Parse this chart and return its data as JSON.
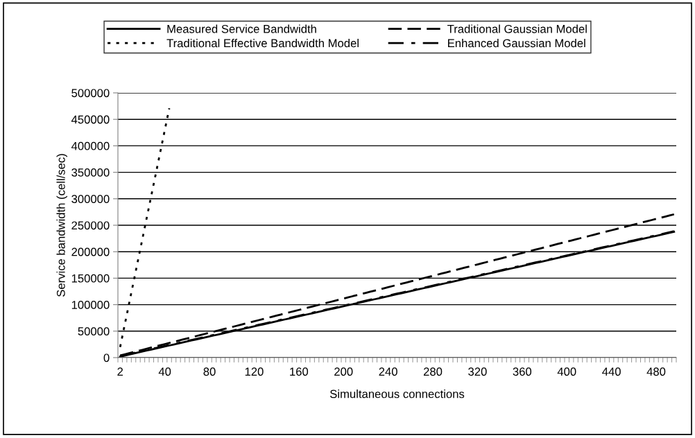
{
  "chart_data": {
    "type": "line",
    "xlabel": "Simultaneous connections",
    "ylabel": "Service bandwidth (cell/sec)",
    "categories": [
      "2",
      null,
      null,
      null,
      null,
      null,
      null,
      null,
      null,
      null,
      "40",
      null,
      null,
      null,
      null,
      null,
      null,
      null,
      null,
      null,
      "80",
      null,
      null,
      null,
      null,
      null,
      null,
      null,
      null,
      null,
      "120",
      null,
      null,
      null,
      null,
      null,
      null,
      null,
      null,
      null,
      "160",
      null,
      null,
      null,
      null,
      null,
      null,
      null,
      null,
      null,
      "200",
      null,
      null,
      null,
      null,
      null,
      null,
      null,
      null,
      null,
      "240",
      null,
      null,
      null,
      null,
      null,
      null,
      null,
      null,
      null,
      "280",
      null,
      null,
      null,
      null,
      null,
      null,
      null,
      null,
      null,
      "320",
      null,
      null,
      null,
      null,
      null,
      null,
      null,
      null,
      null,
      "360",
      null,
      null,
      null,
      null,
      null,
      null,
      null,
      null,
      null,
      "400",
      null,
      null,
      null,
      null,
      null,
      null,
      null,
      null,
      null,
      "440",
      null,
      null,
      null,
      null,
      null,
      null,
      null,
      null,
      null,
      "480",
      null,
      null,
      null,
      null
    ],
    "ylim": [
      0,
      500000
    ],
    "yticks": [
      0,
      50000,
      100000,
      150000,
      200000,
      250000,
      300000,
      350000,
      400000,
      450000,
      500000
    ],
    "grid": "y",
    "legend": "top",
    "marker": "none",
    "series": [
      {
        "name": "Measured Service Bandwidth",
        "color": "#000000",
        "line_style": "solid",
        "values": [
          2000,
          3900,
          5800,
          7700,
          9600,
          11500,
          13400,
          15300,
          17200,
          19100,
          21000,
          22900,
          24800,
          26700,
          28600,
          30500,
          32400,
          34300,
          36200,
          38100,
          40000,
          41900,
          43800,
          45700,
          47600,
          49500,
          51400,
          53300,
          55200,
          57100,
          59000,
          60900,
          62800,
          64700,
          66600,
          68500,
          70400,
          72300,
          74200,
          76100,
          78000,
          79900,
          81800,
          83700,
          85600,
          87500,
          89400,
          91300,
          93200,
          95100,
          97000,
          98900,
          100800,
          102700,
          104600,
          106500,
          108400,
          110300,
          112200,
          114100,
          116000,
          117900,
          119800,
          121700,
          123600,
          125500,
          127400,
          129300,
          131200,
          133100,
          135000,
          136900,
          138800,
          140700,
          142600,
          144500,
          146400,
          148300,
          150200,
          152100,
          154000,
          155900,
          157800,
          159700,
          161600,
          163500,
          165400,
          167300,
          169200,
          171100,
          173000,
          174900,
          176800,
          178700,
          180600,
          182500,
          184400,
          186300,
          188200,
          190100,
          192000,
          193900,
          195800,
          197700,
          199600,
          201500,
          203400,
          205300,
          207200,
          209100,
          211000,
          212900,
          214800,
          216700,
          218600,
          220500,
          222400,
          224300,
          226200,
          228100,
          230000,
          231900,
          233800,
          235700,
          237600
        ]
      },
      {
        "name": "Traditional Gaussian Model",
        "color": "#000000",
        "line_style": "dashed",
        "values": [
          4000,
          6150,
          8300,
          10450,
          12600,
          14750,
          16900,
          19050,
          21200,
          23350,
          25500,
          27650,
          29800,
          31950,
          34100,
          36250,
          38400,
          40550,
          42700,
          44850,
          47000,
          49150,
          51300,
          53450,
          55600,
          57750,
          59900,
          62050,
          64200,
          66350,
          68500,
          70650,
          72800,
          74950,
          77100,
          79250,
          81400,
          83550,
          85700,
          87850,
          90000,
          92150,
          94300,
          96450,
          98600,
          100750,
          102900,
          105050,
          107200,
          109350,
          111500,
          113650,
          115800,
          117950,
          120100,
          122250,
          124400,
          126550,
          128700,
          130850,
          133000,
          135150,
          137300,
          139450,
          141600,
          143750,
          145900,
          148050,
          150200,
          152350,
          154500,
          156650,
          158800,
          160950,
          163100,
          165250,
          167400,
          169550,
          171700,
          173850,
          176000,
          178150,
          180300,
          182450,
          184600,
          186750,
          188900,
          191050,
          193200,
          195350,
          197500,
          199650,
          201800,
          203950,
          206100,
          208250,
          210400,
          212550,
          214700,
          216850,
          219000,
          221150,
          223300,
          225450,
          227600,
          229750,
          231900,
          234050,
          236200,
          238350,
          240500,
          242650,
          244800,
          246950,
          249100,
          251250,
          253400,
          255550,
          257700,
          259850,
          262000,
          264150,
          266300,
          268450,
          270600
        ]
      },
      {
        "name": "Traditional Effective Bandwidth Model",
        "color": "#000000",
        "line_style": "dotted",
        "values": [
          20000,
          61000,
          102000,
          143000,
          184000,
          225000,
          266000,
          307000,
          348000,
          389000,
          430000,
          471000,
          null,
          null,
          null,
          null,
          null,
          null,
          null,
          null,
          null,
          null,
          null,
          null,
          null,
          null,
          null,
          null,
          null,
          null,
          null,
          null,
          null,
          null,
          null,
          null,
          null,
          null,
          null,
          null,
          null,
          null,
          null,
          null,
          null,
          null,
          null,
          null,
          null,
          null,
          null,
          null,
          null,
          null,
          null,
          null,
          null,
          null,
          null,
          null,
          null,
          null,
          null,
          null,
          null,
          null,
          null,
          null,
          null,
          null,
          null,
          null,
          null,
          null,
          null,
          null,
          null,
          null,
          null,
          null,
          null,
          null,
          null,
          null,
          null,
          null,
          null,
          null,
          null,
          null,
          null,
          null,
          null,
          null,
          null,
          null,
          null,
          null,
          null,
          null,
          null,
          null,
          null,
          null,
          null,
          null,
          null,
          null,
          null,
          null,
          null,
          null,
          null,
          null,
          null,
          null,
          null,
          null,
          null,
          null,
          null,
          null,
          null,
          null,
          null
        ]
      },
      {
        "name": "Enhanced Gaussian Model",
        "color": "#000000",
        "line_style": "dashdot",
        "values": [
          3000,
          4900,
          6800,
          8700,
          10600,
          12500,
          14400,
          16300,
          18200,
          20100,
          22000,
          23900,
          25800,
          27700,
          29600,
          31500,
          33400,
          35300,
          37200,
          39100,
          41000,
          42900,
          44800,
          46700,
          48600,
          50500,
          52400,
          54300,
          56200,
          58100,
          60000,
          61900,
          63800,
          65700,
          67600,
          69500,
          71400,
          73300,
          75200,
          77100,
          79000,
          80900,
          82800,
          84700,
          86600,
          88500,
          90400,
          92300,
          94200,
          96100,
          98000,
          99900,
          101800,
          103700,
          105600,
          107500,
          109400,
          111300,
          113200,
          115100,
          117000,
          118900,
          120800,
          122700,
          124600,
          126500,
          128400,
          130300,
          132200,
          134100,
          136000,
          137900,
          139800,
          141700,
          143600,
          145500,
          147400,
          149300,
          151200,
          153100,
          155000,
          156900,
          158800,
          160700,
          162600,
          164500,
          166400,
          168300,
          170200,
          172100,
          174000,
          175900,
          177800,
          179700,
          181600,
          183500,
          185400,
          187300,
          189200,
          191100,
          193000,
          194900,
          196800,
          198700,
          200600,
          202500,
          204400,
          206300,
          208200,
          210100,
          212000,
          213900,
          215800,
          217700,
          219600,
          221500,
          223400,
          225300,
          227200,
          229100,
          231000,
          232900,
          234800,
          236700,
          238600
        ]
      }
    ]
  }
}
